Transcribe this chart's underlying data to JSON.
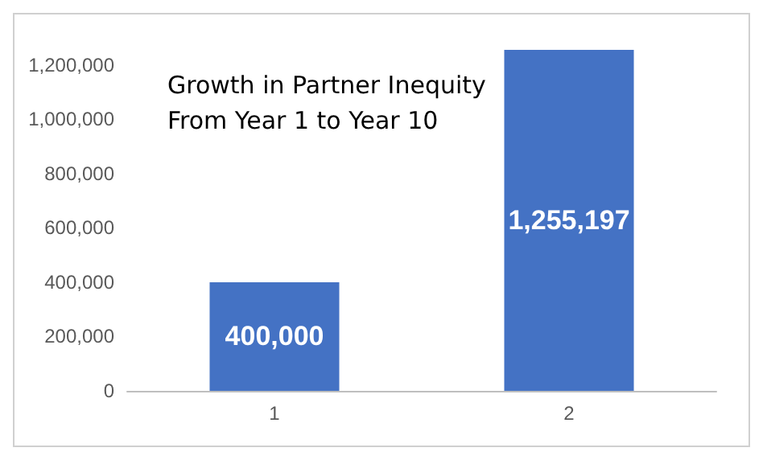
{
  "chart_data": {
    "type": "bar",
    "title": "Growth in Partner Inequity\nFrom Year 1 to Year 10",
    "categories": [
      "1",
      "2"
    ],
    "values": [
      400000,
      1255197
    ],
    "color": "#4472c4",
    "ylim": [
      0,
      1255197
    ],
    "yticks": [
      {
        "value": 0,
        "label": "0"
      },
      {
        "value": 200000,
        "label": "200,000"
      },
      {
        "value": 400000,
        "label": "400,000"
      },
      {
        "value": 600000,
        "label": "600,000"
      },
      {
        "value": 800000,
        "label": "800,000"
      },
      {
        "value": 1000000,
        "label": "1,000,000"
      },
      {
        "value": 1200000,
        "label": "1,200,000"
      }
    ],
    "value_labels": [
      "400,000",
      "1,255,197"
    ],
    "grid": false
  }
}
